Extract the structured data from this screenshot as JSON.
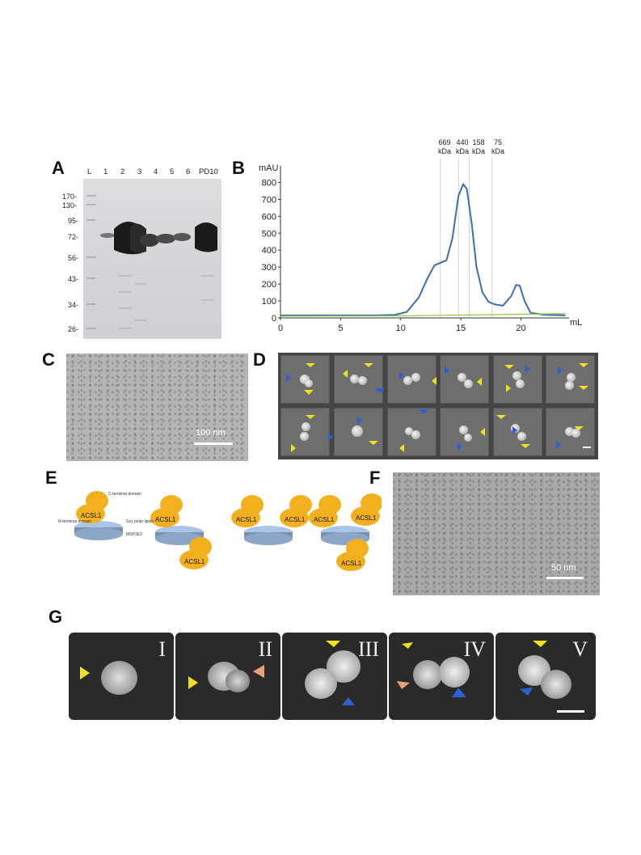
{
  "panels": {
    "A": {
      "letter": "A",
      "lanes": [
        "L",
        "1",
        "2",
        "3",
        "4",
        "5",
        "6",
        "PD10"
      ],
      "markers": [
        "170-",
        "130-",
        "95-",
        "72-",
        "56-",
        "43-",
        "34-",
        "26-"
      ]
    },
    "B": {
      "letter": "B",
      "standards": [
        {
          "line1": "669",
          "line2": "kDa"
        },
        {
          "line1": "440",
          "line2": "kDa"
        },
        {
          "line1": "158",
          "line2": "kDa"
        },
        {
          "line1": "75",
          "line2": "kDa"
        }
      ]
    },
    "C": {
      "letter": "C",
      "scale_bar": "100 nm"
    },
    "D": {
      "letter": "D"
    },
    "E": {
      "letter": "E",
      "labels": {
        "c_terminal": "C-terminal\ndomain",
        "n_terminal": "N-terminal\ndomain",
        "soy": "Soy polar\nlipids",
        "msp": "MSP1E3",
        "acsl": "ACSL1"
      }
    },
    "F": {
      "letter": "F",
      "scale_bar": "50 nm"
    },
    "G": {
      "letter": "G",
      "tiles": [
        "I",
        "II",
        "III",
        "IV",
        "V"
      ]
    }
  },
  "chart_data": {
    "type": "line",
    "ylabel": "mAU",
    "xlabel": "mL",
    "xlim": [
      0,
      24
    ],
    "ylim": [
      0,
      850
    ],
    "xticks": [
      0,
      5,
      10,
      15,
      20
    ],
    "yticks": [
      0,
      100,
      200,
      300,
      400,
      500,
      600,
      700,
      800
    ],
    "standard_positions": [
      13.3,
      14.8,
      15.7,
      17.6
    ],
    "series": [
      {
        "color": "#3a6fb8",
        "x": [
          0,
          8,
          9.5,
          10.5,
          11.5,
          12.2,
          12.8,
          13.3,
          13.8,
          14.3,
          14.8,
          15.2,
          15.5,
          15.9,
          16.3,
          16.8,
          17.3,
          17.8,
          18.5,
          19.2,
          19.6,
          19.9,
          20.3,
          20.8,
          22,
          23.7
        ],
        "values": [
          15,
          15,
          18,
          35,
          120,
          230,
          310,
          325,
          340,
          470,
          720,
          790,
          760,
          560,
          300,
          150,
          95,
          80,
          72,
          130,
          195,
          190,
          100,
          30,
          18,
          15
        ]
      },
      {
        "color": "#8dc63f",
        "x": [
          0,
          10,
          23.7
        ],
        "values": [
          10,
          12,
          25
        ]
      }
    ]
  }
}
